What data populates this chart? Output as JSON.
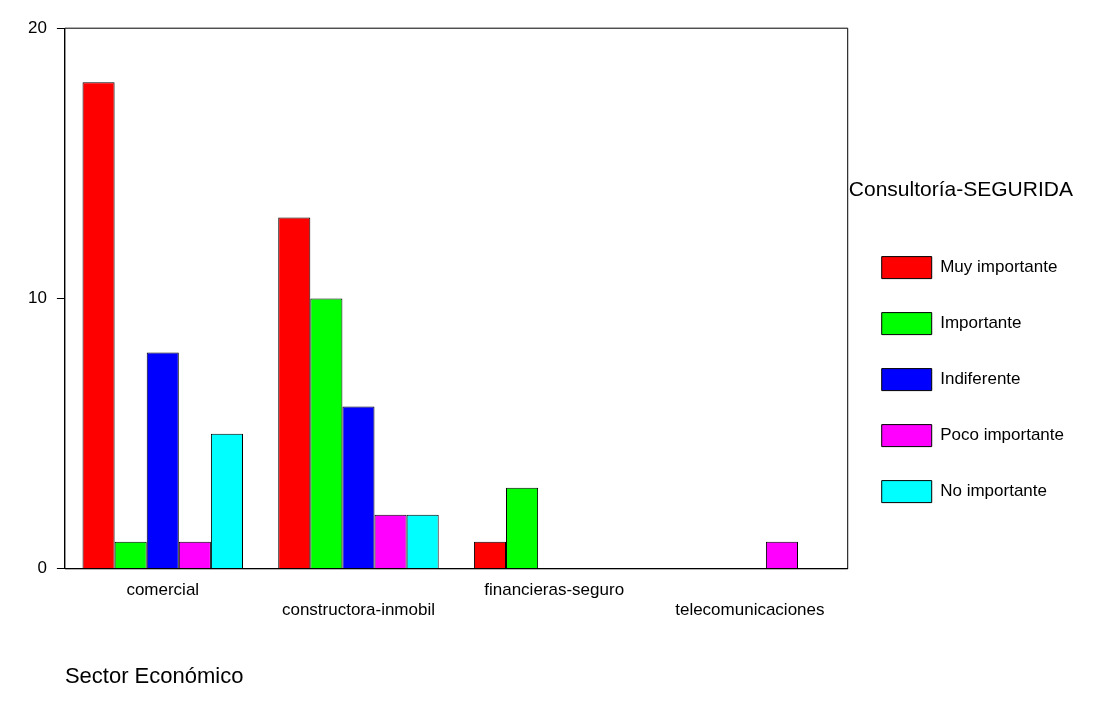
{
  "chart_data": {
    "type": "bar",
    "xlabel": "Sector Económico",
    "legend_title": "Consultoría-SEGURIDA",
    "categories": [
      "comercial",
      "constructora-inmobil",
      "financieras-seguro",
      "telecomunicaciones"
    ],
    "series": [
      {
        "name": "Muy importante",
        "color": "#ff0000",
        "values": [
          18,
          13,
          1,
          0
        ]
      },
      {
        "name": "Importante",
        "color": "#00ff00",
        "values": [
          1,
          10,
          3,
          0
        ]
      },
      {
        "name": "Indiferente",
        "color": "#0000ff",
        "values": [
          8,
          6,
          0,
          0
        ]
      },
      {
        "name": "Poco importante",
        "color": "#ff00ff",
        "values": [
          1,
          2,
          0,
          1
        ]
      },
      {
        "name": "No importante",
        "color": "#00ffff",
        "values": [
          5,
          2,
          0,
          0
        ]
      }
    ],
    "ylim": [
      0,
      20
    ],
    "yticks": [
      0,
      10,
      20
    ],
    "grid": false,
    "legend": "right"
  }
}
